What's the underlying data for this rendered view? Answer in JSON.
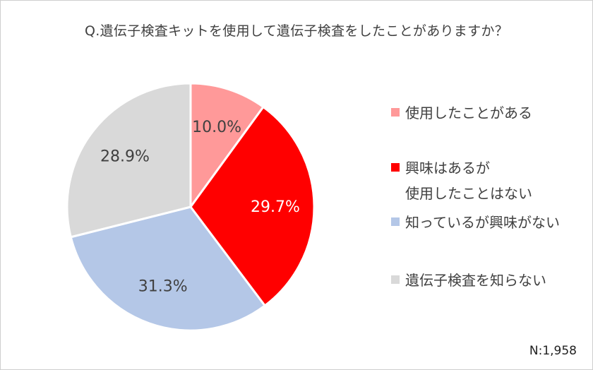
{
  "title": "Q.遺伝子検査キットを使用して遺伝子検査をしたことがありますか？",
  "sample_size": "N:1,958",
  "colors": {
    "used": "#ff9999",
    "interested": "#ff0000",
    "aware": "#b4c7e7",
    "unaware": "#d9d9d9"
  },
  "legend": [
    {
      "text": "使用したことがある",
      "text2": "",
      "color": "#ff9999"
    },
    {
      "text": "興味はあるが",
      "text2": "使用したことはない",
      "color": "#ff0000"
    },
    {
      "text": "知っているが興味がない",
      "text2": "",
      "color": "#b4c7e7"
    },
    {
      "text": "遺伝子検査を知らない",
      "text2": "",
      "color": "#d9d9d9"
    }
  ],
  "chart_data": {
    "type": "pie",
    "title": "Q.遺伝子検査キットを使用して遺伝子検査をしたことがありますか？",
    "categories": [
      "使用したことがある",
      "興味はあるが使用したことはない",
      "知っているが興味がない",
      "遺伝子検査を知らない"
    ],
    "values": [
      10.0,
      29.7,
      31.3,
      28.9
    ],
    "labels": [
      "10.0%",
      "29.7%",
      "31.3%",
      "28.9%"
    ],
    "colors": [
      "#ff9999",
      "#ff0000",
      "#b4c7e7",
      "#d9d9d9"
    ],
    "label_colors": [
      "#404040",
      "#ffffff",
      "#404040",
      "#404040"
    ],
    "start": "12 o'clock",
    "direction": "clockwise",
    "legend": "right",
    "annotation": "N:1,958"
  }
}
